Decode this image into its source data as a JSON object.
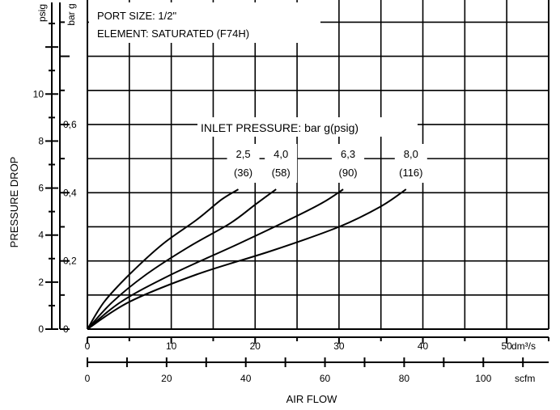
{
  "chart_data": {
    "type": "line",
    "annotations": {
      "port_size": "PORT SIZE: 1/2\"",
      "element": "ELEMENT: SATURATED (F74H)",
      "legend_title": "INLET PRESSURE: bar g(psig)"
    },
    "ylabel": "PRESSURE DROP",
    "xlabel": "AIR FLOW",
    "y_axes": {
      "psig": {
        "unit": "psig",
        "range": [
          0,
          14
        ],
        "ticks": [
          0,
          2,
          4,
          6,
          8,
          10
        ],
        "tick_labels": [
          "0",
          "2",
          "4",
          "6",
          "8",
          "10"
        ]
      },
      "bar": {
        "unit": "bar g",
        "range": [
          0,
          0.965
        ],
        "ticks": [
          0,
          0.2,
          0.4,
          0.6
        ],
        "tick_labels": [
          "0",
          "0,2",
          "0,4",
          "0,6"
        ]
      }
    },
    "x_axes": {
      "dm3s": {
        "unit": "dm³/s",
        "range": [
          0,
          55
        ],
        "ticks": [
          0,
          10,
          20,
          30,
          40,
          50
        ],
        "tick_labels": [
          "0",
          "10",
          "20",
          "30",
          "40",
          "50"
        ]
      },
      "scfm": {
        "unit": "scfm",
        "range": [
          0,
          116.5
        ],
        "ticks": [
          0,
          20,
          40,
          60,
          80,
          100
        ],
        "tick_labels": [
          "0",
          "20",
          "40",
          "60",
          "80",
          "100"
        ]
      }
    },
    "grid": true,
    "series": [
      {
        "name": "2,5 (36)",
        "label_top": "2,5",
        "label_bottom": "(36)",
        "x": [
          0,
          2,
          5,
          9,
          13,
          16,
          18
        ],
        "y": [
          0,
          0.08,
          0.16,
          0.25,
          0.32,
          0.38,
          0.41
        ]
      },
      {
        "name": "4,0 (58)",
        "label_top": "4,0",
        "label_bottom": "(58)",
        "x": [
          0,
          3,
          7,
          12,
          17,
          20,
          22.5
        ],
        "y": [
          0,
          0.08,
          0.16,
          0.24,
          0.31,
          0.365,
          0.41
        ]
      },
      {
        "name": "6,3 (90)",
        "label_top": "6,3",
        "label_bottom": "(90)",
        "x": [
          0,
          4,
          10,
          18,
          24,
          28,
          30.5
        ],
        "y": [
          0,
          0.08,
          0.16,
          0.25,
          0.32,
          0.37,
          0.41
        ]
      },
      {
        "name": "8,0 (116)",
        "label_top": "8,0",
        "label_bottom": "(116)",
        "x": [
          0,
          5,
          13,
          22,
          30,
          35,
          38
        ],
        "y": [
          0,
          0.08,
          0.16,
          0.23,
          0.3,
          0.36,
          0.41
        ]
      }
    ]
  }
}
